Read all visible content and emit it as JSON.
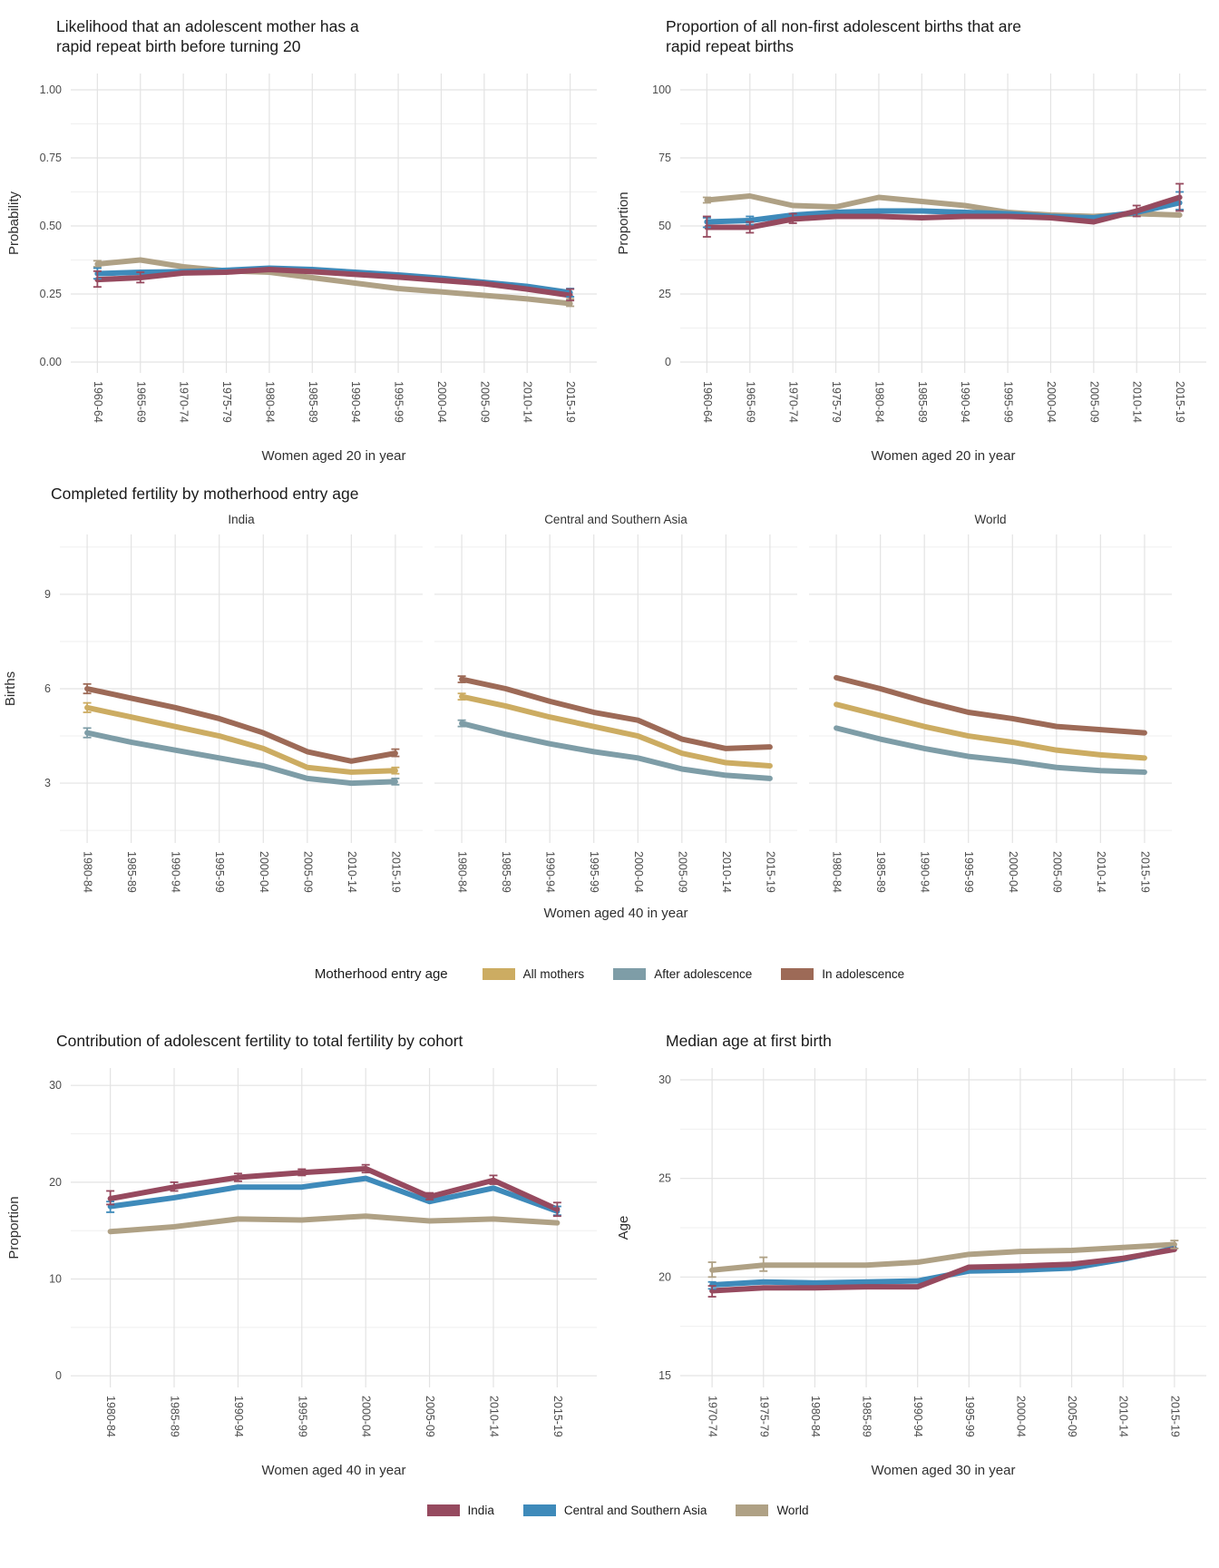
{
  "colors": {
    "india": "#964A5F",
    "central_southern_asia": "#3E8ABA",
    "world": "#AFA185",
    "all_mothers": "#CCAC62",
    "after_adolescence": "#7E9DA7",
    "in_adolescence": "#9D6A57",
    "grid_major": "#E3E3E3",
    "grid_minor": "#EFEFEF",
    "axis_text": "#4D4D4D",
    "axis_title_text": "#303030"
  },
  "legend_entry_age": {
    "title": "Motherhood entry age",
    "items": [
      {
        "key": "all_mothers",
        "label": "All mothers"
      },
      {
        "key": "after_adolescence",
        "label": "After adolescence"
      },
      {
        "key": "in_adolescence",
        "label": "In adolescence"
      }
    ]
  },
  "legend_series": {
    "items": [
      {
        "key": "india",
        "label": "India"
      },
      {
        "key": "central_southern_asia",
        "label": "Central and Southern Asia"
      },
      {
        "key": "world",
        "label": "World"
      }
    ]
  },
  "chart_data": [
    {
      "id": "rrb-likelihood",
      "type": "line",
      "title": "Likelihood that an adolescent mother has a\nrapid repeat birth before turning 20",
      "ylabel": "Probability",
      "xlabel": "Women aged 20 in year",
      "ylim": [
        -0.04,
        1.06
      ],
      "yticks": [
        {
          "v": 0,
          "label": "0.00"
        },
        {
          "v": 0.25,
          "label": "0.25"
        },
        {
          "v": 0.5,
          "label": "0.50"
        },
        {
          "v": 0.75,
          "label": "0.75"
        },
        {
          "v": 1.0,
          "label": "1.00"
        }
      ],
      "yminor": [
        0.125,
        0.375,
        0.625,
        0.875
      ],
      "categories": [
        "1960-64",
        "1965-69",
        "1970-74",
        "1975-79",
        "1980-84",
        "1985-89",
        "1990-94",
        "1995-99",
        "2000-04",
        "2005-09",
        "2010-14",
        "2015-19"
      ],
      "series": [
        {
          "key": "world",
          "name": "World",
          "values": [
            0.36,
            0.375,
            0.35,
            0.335,
            0.33,
            0.31,
            0.29,
            0.27,
            0.258,
            0.245,
            0.232,
            0.215
          ],
          "errors": {
            "0": [
              0.35,
              0.372
            ],
            "11": [
              0.205,
              0.232
            ]
          }
        },
        {
          "key": "central_southern_asia",
          "name": "Central and Southern Asia",
          "values": [
            0.325,
            0.33,
            0.332,
            0.337,
            0.345,
            0.34,
            0.33,
            0.32,
            0.308,
            0.293,
            0.278,
            0.255
          ],
          "errors": {
            "0": [
              0.306,
              0.345
            ],
            "11": [
              0.24,
              0.27
            ]
          }
        },
        {
          "key": "india",
          "name": "India",
          "values": [
            0.303,
            0.31,
            0.327,
            0.33,
            0.34,
            0.332,
            0.322,
            0.312,
            0.3,
            0.288,
            0.268,
            0.245
          ],
          "errors": {
            "0": [
              0.276,
              0.334
            ],
            "1": [
              0.292,
              0.33
            ],
            "11": [
              0.226,
              0.268
            ]
          }
        }
      ]
    },
    {
      "id": "rrb-proportion",
      "type": "line",
      "title": "Proportion of all non-first adolescent births that are\nrapid repeat births",
      "ylabel": "Proportion",
      "xlabel": "Women aged 20 in year",
      "ylim": [
        -4,
        106
      ],
      "yticks": [
        {
          "v": 0,
          "label": "0"
        },
        {
          "v": 25,
          "label": "25"
        },
        {
          "v": 50,
          "label": "50"
        },
        {
          "v": 75,
          "label": "75"
        },
        {
          "v": 100,
          "label": "100"
        }
      ],
      "yminor": [
        12.5,
        37.5,
        62.5,
        87.5
      ],
      "categories": [
        "1960-64",
        "1965-69",
        "1970-74",
        "1975-79",
        "1980-84",
        "1985-89",
        "1990-94",
        "1995-99",
        "2000-04",
        "2005-09",
        "2010-14",
        "2015-19"
      ],
      "series": [
        {
          "key": "world",
          "name": "World",
          "values": [
            59.5,
            61,
            57.5,
            57,
            60.5,
            59,
            57.5,
            55,
            54,
            53.5,
            54.5,
            54
          ],
          "errors": {
            "0": [
              58.5,
              60.5
            ]
          }
        },
        {
          "key": "central_southern_asia",
          "name": "Central and Southern Asia",
          "values": [
            51.5,
            52,
            54,
            55,
            55.5,
            55.5,
            55,
            54.5,
            53.5,
            53,
            55,
            58.5
          ],
          "errors": {
            "0": [
              49.5,
              53
            ],
            "1": [
              50.5,
              53.5
            ],
            "11": [
              56,
              62.5
            ]
          }
        },
        {
          "key": "india",
          "name": "India",
          "values": [
            49.5,
            49.5,
            52.5,
            53.5,
            53.5,
            53,
            53.5,
            53.5,
            53,
            51.5,
            55.5,
            60.5
          ],
          "errors": {
            "0": [
              46,
              53.5
            ],
            "1": [
              47.5,
              51.5
            ],
            "2": [
              51,
              54.5
            ],
            "10": [
              53.5,
              57.5
            ],
            "11": [
              55.5,
              65.5
            ]
          }
        }
      ]
    },
    {
      "id": "completed-fertility",
      "type": "line",
      "title": "Completed fertility by motherhood entry age",
      "ylabel": "Births",
      "xlabel": "Women aged 40 in year",
      "ylim": [
        1.1,
        10.9
      ],
      "yticks": [
        {
          "v": 3,
          "label": "3"
        },
        {
          "v": 6,
          "label": "6"
        },
        {
          "v": 9,
          "label": "9"
        }
      ],
      "yminor": [
        1.5,
        4.5,
        7.5,
        10.5
      ],
      "categories": [
        "1980-84",
        "1985-89",
        "1990-94",
        "1995-99",
        "2000-04",
        "2005-09",
        "2010-14",
        "2015-19"
      ],
      "facets": [
        {
          "label": "India",
          "series": [
            {
              "key": "after_adolescence",
              "name": "After adolescence",
              "values": [
                4.6,
                4.3,
                4.05,
                3.8,
                3.55,
                3.15,
                3.0,
                3.05
              ],
              "errors": {
                "0": [
                  4.45,
                  4.75
                ],
                "7": [
                  2.95,
                  3.15
                ]
              }
            },
            {
              "key": "all_mothers",
              "name": "All mothers",
              "values": [
                5.4,
                5.1,
                4.8,
                4.5,
                4.1,
                3.5,
                3.35,
                3.4
              ],
              "errors": {
                "0": [
                  5.25,
                  5.55
                ],
                "7": [
                  3.3,
                  3.5
                ]
              }
            },
            {
              "key": "in_adolescence",
              "name": "In adolescence",
              "values": [
                6.0,
                5.7,
                5.4,
                5.05,
                4.6,
                4.0,
                3.7,
                3.95
              ],
              "errors": {
                "0": [
                  5.85,
                  6.15
                ],
                "7": [
                  3.85,
                  4.08
                ]
              }
            }
          ]
        },
        {
          "label": "Central and Southern Asia",
          "series": [
            {
              "key": "after_adolescence",
              "name": "After adolescence",
              "values": [
                4.9,
                4.55,
                4.25,
                4.0,
                3.8,
                3.45,
                3.25,
                3.15
              ],
              "errors": {
                "0": [
                  4.8,
                  5.0
                ]
              }
            },
            {
              "key": "all_mothers",
              "name": "All mothers",
              "values": [
                5.75,
                5.45,
                5.1,
                4.8,
                4.5,
                3.95,
                3.65,
                3.55
              ],
              "errors": {
                "0": [
                  5.65,
                  5.85
                ]
              }
            },
            {
              "key": "in_adolescence",
              "name": "In adolescence",
              "values": [
                6.3,
                6.0,
                5.6,
                5.25,
                5.0,
                4.4,
                4.1,
                4.15
              ],
              "errors": {
                "0": [
                  6.2,
                  6.4
                ]
              }
            }
          ]
        },
        {
          "label": "World",
          "series": [
            {
              "key": "after_adolescence",
              "name": "After adolescence",
              "values": [
                4.75,
                4.4,
                4.1,
                3.85,
                3.7,
                3.5,
                3.4,
                3.35
              ]
            },
            {
              "key": "all_mothers",
              "name": "All mothers",
              "values": [
                5.5,
                5.15,
                4.8,
                4.5,
                4.3,
                4.05,
                3.9,
                3.8
              ]
            },
            {
              "key": "in_adolescence",
              "name": "In adolescence",
              "values": [
                6.35,
                6.0,
                5.6,
                5.25,
                5.05,
                4.8,
                4.7,
                4.6
              ]
            }
          ]
        }
      ]
    },
    {
      "id": "adolescent-contribution",
      "type": "line",
      "title": "Contribution of adolescent fertility to total fertility by cohort",
      "ylabel": "Proportion",
      "xlabel": "Women aged 40 in year",
      "ylim": [
        -1.2,
        31.8
      ],
      "yticks": [
        {
          "v": 0,
          "label": "0"
        },
        {
          "v": 10,
          "label": "10"
        },
        {
          "v": 20,
          "label": "20"
        },
        {
          "v": 30,
          "label": "30"
        }
      ],
      "yminor": [
        5,
        15,
        25
      ],
      "categories": [
        "1980-84",
        "1985-89",
        "1990-94",
        "1995-99",
        "2000-04",
        "2005-09",
        "2010-14",
        "2015-19"
      ],
      "series": [
        {
          "key": "world",
          "name": "World",
          "values": [
            14.9,
            15.4,
            16.2,
            16.1,
            16.5,
            16.0,
            16.2,
            15.8
          ]
        },
        {
          "key": "central_southern_asia",
          "name": "Central and Southern Asia",
          "values": [
            17.5,
            18.4,
            19.5,
            19.5,
            20.4,
            18.0,
            19.4,
            17.0
          ],
          "errors": {
            "0": [
              16.9,
              18.0
            ],
            "7": [
              16.6,
              17.5
            ]
          }
        },
        {
          "key": "india",
          "name": "India",
          "values": [
            18.3,
            19.5,
            20.5,
            21.0,
            21.4,
            18.5,
            20.2,
            17.2
          ],
          "errors": {
            "0": [
              17.7,
              19.1
            ],
            "1": [
              19.1,
              20.0
            ],
            "2": [
              20.1,
              20.9
            ],
            "3": [
              20.7,
              21.35
            ],
            "4": [
              21.0,
              21.8
            ],
            "5": [
              18.2,
              18.9
            ],
            "6": [
              19.8,
              20.7
            ],
            "7": [
              16.5,
              17.9
            ]
          }
        }
      ]
    },
    {
      "id": "median-age",
      "type": "line",
      "title": "Median age at first birth",
      "ylabel": "Age",
      "xlabel": "Women aged 30 in year",
      "ylim": [
        14.4,
        30.6
      ],
      "yticks": [
        {
          "v": 15,
          "label": "15"
        },
        {
          "v": 20,
          "label": "20"
        },
        {
          "v": 25,
          "label": "25"
        },
        {
          "v": 30,
          "label": "30"
        }
      ],
      "yminor": [
        17.5,
        22.5,
        27.5
      ],
      "categories": [
        "1970-74",
        "1975-79",
        "1980-84",
        "1985-89",
        "1990-94",
        "1995-99",
        "2000-04",
        "2005-09",
        "2010-14",
        "2015-19"
      ],
      "series": [
        {
          "key": "world",
          "name": "World",
          "values": [
            20.35,
            20.6,
            20.6,
            20.6,
            20.75,
            21.15,
            21.3,
            21.35,
            21.5,
            21.65
          ],
          "errors": {
            "0": [
              20.0,
              20.75
            ],
            "1": [
              20.3,
              21.0
            ],
            "9": [
              21.45,
              21.85
            ]
          }
        },
        {
          "key": "central_southern_asia",
          "name": "Central and Southern Asia",
          "values": [
            19.6,
            19.75,
            19.7,
            19.75,
            19.8,
            20.3,
            20.35,
            20.45,
            20.9,
            21.45
          ],
          "errors": {
            "0": [
              19.4,
              19.75
            ]
          }
        },
        {
          "key": "india",
          "name": "India",
          "values": [
            19.3,
            19.45,
            19.45,
            19.5,
            19.5,
            20.5,
            20.55,
            20.65,
            20.95,
            21.4
          ],
          "errors": {
            "0": [
              19.0,
              19.55
            ]
          }
        }
      ]
    }
  ]
}
